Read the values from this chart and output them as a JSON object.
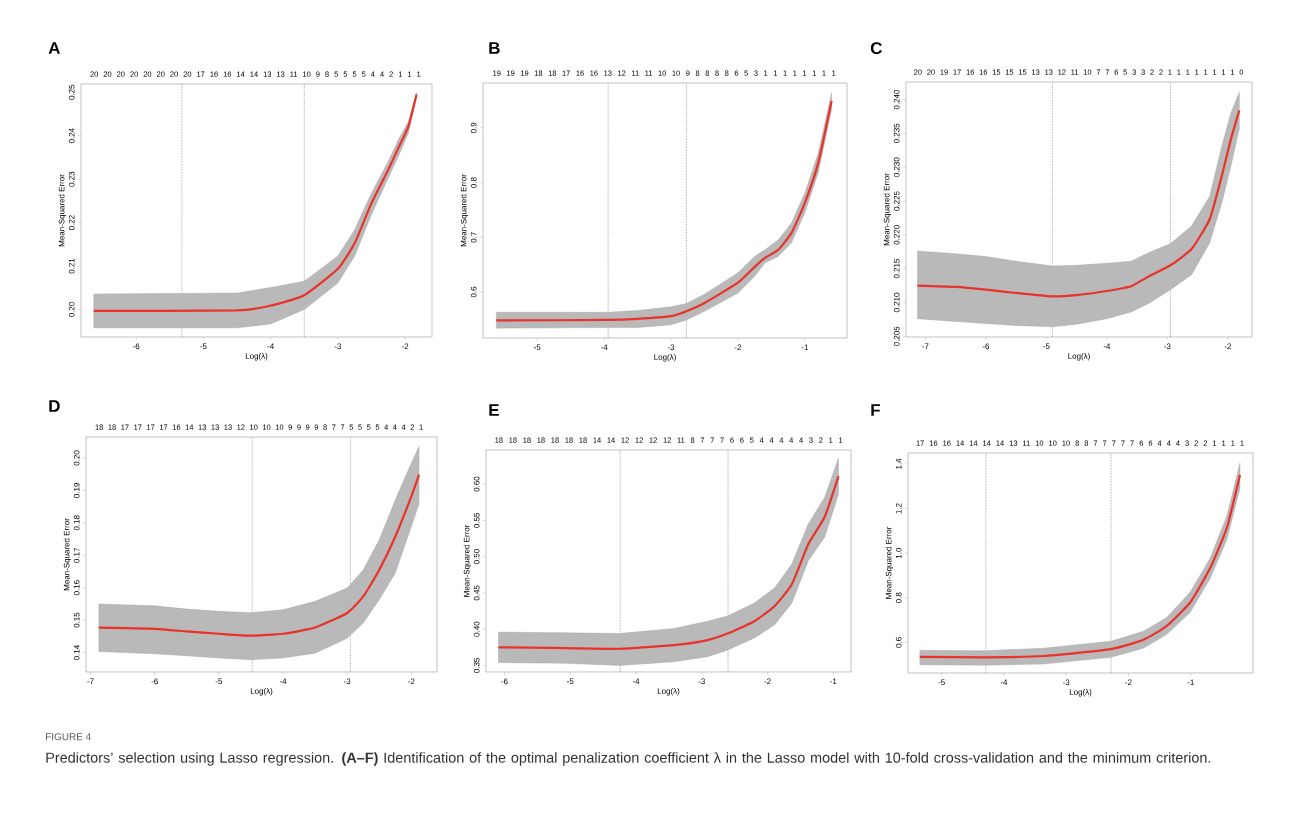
{
  "chart_data": [
    {
      "type": "line",
      "title": "A",
      "xlabel": "Log(λ)",
      "ylabel": "Mean-Squared Error",
      "xlim": [
        -6.82,
        -1.6
      ],
      "ylim": [
        0.1937,
        0.2519
      ],
      "xticks": [
        -6,
        -5,
        -4,
        -3,
        -2
      ],
      "yticks": [
        {
          "value": 0.2,
          "label": "0.20"
        },
        0.21,
        0.22,
        0.23,
        0.24,
        0.25
      ],
      "annotations": [
        "20 20 20 20 20 20 20 20 17 16 16 14 14 13 13 11 10 9 8 5 5 5 5 4 4 2 1 1 1"
      ],
      "ref_lines": [
        {
          "axis": "x",
          "value": -5.32,
          "line_style": "dotted"
        },
        {
          "axis": "x",
          "value": -3.5,
          "line_style": "dotted"
        }
      ],
      "series": [
        {
          "color": "#e8322a",
          "x": [
            -6.63,
            -4.5,
            -4.0,
            -3.5,
            -3.0,
            -2.75,
            -2.5,
            -2.25,
            -2.1,
            -1.95,
            -1.83
          ],
          "values": [
            0.1997,
            0.1998,
            0.2009,
            0.2033,
            0.2094,
            0.2153,
            0.2245,
            0.2322,
            0.2372,
            0.2422,
            0.2495
          ],
          "lower": [
            0.1958,
            0.1958,
            0.1967,
            0.2,
            0.2061,
            0.2123,
            0.2219,
            0.2303,
            0.2353,
            0.2406,
            0.2492
          ],
          "upper": [
            0.2036,
            0.2038,
            0.2051,
            0.2065,
            0.2123,
            0.2184,
            0.2268,
            0.2341,
            0.2391,
            0.2433,
            0.25
          ]
        }
      ]
    },
    {
      "type": "line",
      "title": "B",
      "xlabel": "Log(λ)",
      "ylabel": "Mean-Squared Error",
      "xlim": [
        -5.81,
        -0.37
      ],
      "ylim": [
        0.516,
        0.982
      ],
      "xticks": [
        -5,
        -4,
        -3,
        -2,
        -1
      ],
      "yticks": [
        0.6,
        0.7,
        0.8,
        0.9
      ],
      "annotations": [
        "19 19 19 18 18 17 16 16 13 12 11 11 10 10 9 8 8 8 8 6 5 3 1 1 1 1 1 1 1 1"
      ],
      "ref_lines": [
        {
          "axis": "x",
          "value": -3.94,
          "line_style": "dotted"
        },
        {
          "axis": "x",
          "value": -2.77,
          "line_style": "dotted"
        }
      ],
      "series": [
        {
          "color": "#e8322a",
          "x": [
            -5.61,
            -3.94,
            -3.5,
            -3.0,
            -2.77,
            -2.5,
            -2.0,
            -1.75,
            -1.6,
            -1.4,
            -1.2,
            -1.0,
            -0.8,
            -0.6
          ],
          "values": [
            0.548,
            0.549,
            0.551,
            0.556,
            0.565,
            0.58,
            0.617,
            0.646,
            0.662,
            0.677,
            0.708,
            0.763,
            0.836,
            0.949
          ],
          "lower": [
            0.534,
            0.535,
            0.535,
            0.54,
            0.549,
            0.565,
            0.598,
            0.629,
            0.653,
            0.665,
            0.69,
            0.745,
            0.818,
            0.934
          ],
          "upper": [
            0.563,
            0.563,
            0.566,
            0.573,
            0.579,
            0.596,
            0.635,
            0.665,
            0.677,
            0.695,
            0.726,
            0.781,
            0.854,
            0.964
          ]
        }
      ]
    },
    {
      "type": "line",
      "title": "C",
      "xlabel": "Log(λ)",
      "ylabel": "Mean-Squared Error",
      "xlim": [
        -7.32,
        -1.6
      ],
      "ylim": [
        0.2049,
        0.2426
      ],
      "xticks": [
        -7,
        -6,
        -5,
        -4,
        -3,
        -2
      ],
      "yticks": [
        0.205,
        {
          "value": 0.21,
          "label": "0.210"
        },
        0.215,
        {
          "value": 0.22,
          "label": "0.220"
        },
        0.225,
        {
          "value": 0.23,
          "label": "0.230"
        },
        0.235,
        {
          "value": 0.24,
          "label": "0.240"
        }
      ],
      "annotations": [
        "20 20 19 17 16 16 15 15 15 13 13 12 11 10 7 7 6 5 3 3 2 2 1 1 1 1 1 1 1 1 0"
      ],
      "ref_lines": [
        {
          "axis": "x",
          "value": -4.9,
          "line_style": "dotted"
        },
        {
          "axis": "x",
          "value": -2.95,
          "line_style": "dotted"
        }
      ],
      "series": [
        {
          "color": "#e8322a",
          "x": [
            -7.13,
            -6.5,
            -6.0,
            -5.5,
            -4.9,
            -4.5,
            -4.0,
            -3.6,
            -3.3,
            -2.95,
            -2.6,
            -2.3,
            -2.1,
            -1.95,
            -1.81
          ],
          "values": [
            0.2125,
            0.2123,
            0.2119,
            0.2114,
            0.2109,
            0.2111,
            0.2117,
            0.2124,
            0.2139,
            0.2155,
            0.2179,
            0.2223,
            0.2287,
            0.2341,
            0.2384
          ],
          "lower": [
            0.2076,
            0.2072,
            0.2069,
            0.2066,
            0.2064,
            0.2068,
            0.2076,
            0.2086,
            0.2099,
            0.2119,
            0.2141,
            0.2188,
            0.2247,
            0.2301,
            0.2357
          ],
          "upper": [
            0.2176,
            0.2172,
            0.2168,
            0.2161,
            0.2154,
            0.2155,
            0.2158,
            0.2161,
            0.2174,
            0.2187,
            0.2213,
            0.2257,
            0.2331,
            0.238,
            0.2411
          ]
        }
      ]
    },
    {
      "type": "line",
      "title": "D",
      "xlabel": "Log(λ)",
      "ylabel": "Mean-Squared Error",
      "xlim": [
        -7.07,
        -1.6
      ],
      "ylim": [
        0.134,
        0.2065
      ],
      "xticks": [
        -7,
        -6,
        -5,
        -4,
        -3,
        -2
      ],
      "yticks": [
        0.14,
        0.15,
        0.16,
        0.17,
        0.18,
        0.19,
        {
          "value": 0.2,
          "label": "0.20"
        }
      ],
      "annotations": [
        "18 18 17 17 17 17 16 14 13 13 13 12 10 10 10 9 9 9 9 8 7 7 5 5 5 5 4 4 4 2 1"
      ],
      "ref_lines": [
        {
          "axis": "x",
          "value": -4.48,
          "line_style": "dotted"
        },
        {
          "axis": "x",
          "value": -2.95,
          "line_style": "dotted"
        }
      ],
      "series": [
        {
          "color": "#e8322a",
          "x": [
            -6.87,
            -6.0,
            -5.5,
            -5.0,
            -4.5,
            -4.0,
            -3.5,
            -3.0,
            -2.75,
            -2.5,
            -2.25,
            -2.0,
            -1.88
          ],
          "values": [
            0.1477,
            0.1473,
            0.1465,
            0.1458,
            0.1452,
            0.1458,
            0.1477,
            0.1522,
            0.1573,
            0.1655,
            0.1758,
            0.1882,
            0.1949
          ],
          "lower": [
            0.1403,
            0.1396,
            0.139,
            0.1383,
            0.1378,
            0.1383,
            0.1398,
            0.1444,
            0.1491,
            0.1563,
            0.1645,
            0.1789,
            0.1859
          ],
          "upper": [
            0.155,
            0.1544,
            0.1534,
            0.1527,
            0.1523,
            0.1532,
            0.1558,
            0.1599,
            0.1655,
            0.1748,
            0.1871,
            0.1985,
            0.2036
          ]
        }
      ]
    },
    {
      "type": "line",
      "title": "E",
      "xlabel": "Log(λ)",
      "ylabel": "Mean-Squared Error",
      "xlim": [
        -6.28,
        -0.73
      ],
      "ylim": [
        0.341,
        0.647
      ],
      "xticks": [
        -6,
        -5,
        -4,
        -3,
        -2,
        -1
      ],
      "yticks": [
        0.35,
        {
          "value": 0.4,
          "label": "0.40"
        },
        0.45,
        {
          "value": 0.5,
          "label": "0.50"
        },
        0.55,
        {
          "value": 0.6,
          "label": "0.60"
        }
      ],
      "annotations": [
        "18 18 18 18 18 18 18 14 14 12 12 12 12 11 8 7 7 7 6 6 5 4 4 4 4 4 3 2 1 1"
      ],
      "ref_lines": [
        {
          "axis": "x",
          "value": -4.24,
          "line_style": "dotted"
        },
        {
          "axis": "x",
          "value": -2.6,
          "line_style": "dotted"
        }
      ],
      "series": [
        {
          "color": "#e8322a",
          "x": [
            -6.09,
            -5.07,
            -4.25,
            -3.42,
            -2.91,
            -2.61,
            -2.2,
            -1.89,
            -1.63,
            -1.38,
            -1.13,
            -0.92
          ],
          "values": [
            0.375,
            0.374,
            0.373,
            0.378,
            0.385,
            0.394,
            0.411,
            0.432,
            0.462,
            0.517,
            0.555,
            0.611
          ],
          "lower": [
            0.354,
            0.353,
            0.35,
            0.355,
            0.362,
            0.371,
            0.388,
            0.406,
            0.436,
            0.494,
            0.527,
            0.586
          ],
          "upper": [
            0.396,
            0.395,
            0.394,
            0.401,
            0.411,
            0.418,
            0.436,
            0.457,
            0.49,
            0.545,
            0.582,
            0.636
          ]
        }
      ]
    },
    {
      "type": "line",
      "title": "F",
      "xlabel": "Log(λ)",
      "ylabel": "Mean-Squared Error",
      "xlim": [
        -5.54,
        0.0
      ],
      "ylim": [
        0.463,
        1.449
      ],
      "xticks": [
        -5,
        -4,
        -3,
        -2,
        -1
      ],
      "yticks": [
        0.6,
        0.8,
        {
          "value": 1.0,
          "label": "1.0"
        },
        1.2,
        1.4
      ],
      "annotations": [
        "17 16 16 14 14 14 14 13 11 10 10 10 8 8 7 7 7 7 7 6 6 4 4 4 3 2 2 1 1 1 1",
        "FIGURE 4",
        "Predictors’ selection using Lasso regression. **(A–F)** Identification of the optimal penalization coefficient λ in the Lasso model with 10-fold cross-validation and the minimum criterion."
      ],
      "ref_lines": [
        {
          "axis": "x",
          "value": -4.29,
          "line_style": "dotted"
        },
        {
          "axis": "x",
          "value": -2.28,
          "line_style": "dotted"
        }
      ],
      "series": [
        {
          "color": "#e8322a",
          "x": [
            -5.35,
            -4.29,
            -3.37,
            -2.28,
            -1.76,
            -1.39,
            -1.01,
            -0.69,
            -0.42,
            -0.21
          ],
          "values": [
            0.535,
            0.533,
            0.539,
            0.57,
            0.612,
            0.673,
            0.779,
            0.932,
            1.114,
            1.35
          ],
          "lower": [
            0.5,
            0.498,
            0.503,
            0.533,
            0.574,
            0.635,
            0.734,
            0.886,
            1.061,
            1.289
          ],
          "upper": [
            0.565,
            0.563,
            0.574,
            0.605,
            0.65,
            0.711,
            0.825,
            0.977,
            1.167,
            1.403
          ]
        }
      ]
    }
  ]
}
